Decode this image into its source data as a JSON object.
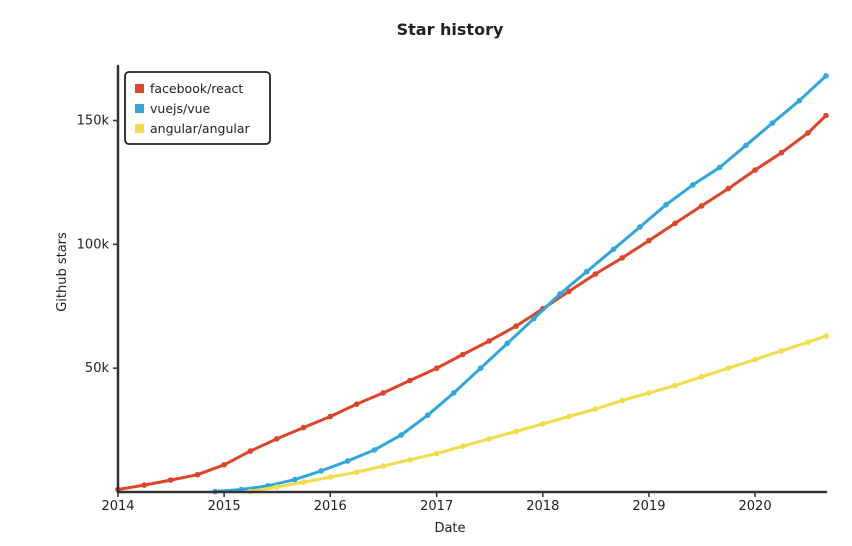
{
  "chart_data": {
    "type": "line",
    "title": "Star history",
    "xlabel": "Date",
    "ylabel": "Github stars",
    "x_ticks": [
      "2014",
      "2015",
      "2016",
      "2017",
      "2018",
      "2019",
      "2020"
    ],
    "y_ticks": [
      "50k",
      "100k",
      "150k"
    ],
    "ylim": [
      0,
      172000
    ],
    "xlim": [
      "2014-01-01",
      "2020-09-01"
    ],
    "legend_position": "top-left",
    "series": [
      {
        "name": "facebook/react",
        "color": "#dd4528",
        "points": [
          [
            "2014-01-01",
            1000
          ],
          [
            "2014-04-01",
            2800
          ],
          [
            "2014-07-01",
            4800
          ],
          [
            "2014-10-01",
            7000
          ],
          [
            "2015-01-01",
            11000
          ],
          [
            "2015-04-01",
            16500
          ],
          [
            "2015-07-01",
            21500
          ],
          [
            "2015-10-01",
            26000
          ],
          [
            "2016-01-01",
            30500
          ],
          [
            "2016-04-01",
            35500
          ],
          [
            "2016-07-01",
            40000
          ],
          [
            "2016-10-01",
            45000
          ],
          [
            "2017-01-01",
            50000
          ],
          [
            "2017-04-01",
            55500
          ],
          [
            "2017-07-01",
            61000
          ],
          [
            "2017-10-01",
            67000
          ],
          [
            "2018-01-01",
            74000
          ],
          [
            "2018-04-01",
            81000
          ],
          [
            "2018-07-01",
            88000
          ],
          [
            "2018-10-01",
            94500
          ],
          [
            "2019-01-01",
            101500
          ],
          [
            "2019-04-01",
            108500
          ],
          [
            "2019-07-01",
            115500
          ],
          [
            "2019-10-01",
            122500
          ],
          [
            "2020-01-01",
            130000
          ],
          [
            "2020-04-01",
            137000
          ],
          [
            "2020-07-01",
            145000
          ],
          [
            "2020-09-01",
            152000
          ]
        ]
      },
      {
        "name": "vuejs/vue",
        "color": "#2fa7dc",
        "points": [
          [
            "2014-12-01",
            200
          ],
          [
            "2015-03-01",
            1000
          ],
          [
            "2015-06-01",
            2500
          ],
          [
            "2015-09-01",
            5000
          ],
          [
            "2015-12-01",
            8500
          ],
          [
            "2016-03-01",
            12500
          ],
          [
            "2016-06-01",
            17000
          ],
          [
            "2016-09-01",
            23000
          ],
          [
            "2016-12-01",
            31000
          ],
          [
            "2017-03-01",
            40000
          ],
          [
            "2017-06-01",
            50000
          ],
          [
            "2017-09-01",
            60000
          ],
          [
            "2017-12-01",
            70000
          ],
          [
            "2018-03-01",
            80000
          ],
          [
            "2018-06-01",
            89000
          ],
          [
            "2018-09-01",
            98000
          ],
          [
            "2018-12-01",
            107000
          ],
          [
            "2019-03-01",
            116000
          ],
          [
            "2019-06-01",
            124000
          ],
          [
            "2019-09-01",
            131000
          ],
          [
            "2019-12-01",
            140000
          ],
          [
            "2020-03-01",
            149000
          ],
          [
            "2020-06-01",
            158000
          ],
          [
            "2020-09-01",
            168000
          ]
        ]
      },
      {
        "name": "angular/angular",
        "color": "#f2dc4a",
        "points": [
          [
            "2015-04-01",
            200
          ],
          [
            "2015-07-01",
            2000
          ],
          [
            "2015-10-01",
            4000
          ],
          [
            "2016-01-01",
            6000
          ],
          [
            "2016-04-01",
            8000
          ],
          [
            "2016-07-01",
            10500
          ],
          [
            "2016-10-01",
            13000
          ],
          [
            "2017-01-01",
            15500
          ],
          [
            "2017-04-01",
            18500
          ],
          [
            "2017-07-01",
            21500
          ],
          [
            "2017-10-01",
            24500
          ],
          [
            "2018-01-01",
            27500
          ],
          [
            "2018-04-01",
            30500
          ],
          [
            "2018-07-01",
            33500
          ],
          [
            "2018-10-01",
            37000
          ],
          [
            "2019-01-01",
            40000
          ],
          [
            "2019-04-01",
            43000
          ],
          [
            "2019-07-01",
            46500
          ],
          [
            "2019-10-01",
            50000
          ],
          [
            "2020-01-01",
            53500
          ],
          [
            "2020-04-01",
            57000
          ],
          [
            "2020-07-01",
            60500
          ],
          [
            "2020-09-01",
            63000
          ]
        ]
      }
    ]
  }
}
